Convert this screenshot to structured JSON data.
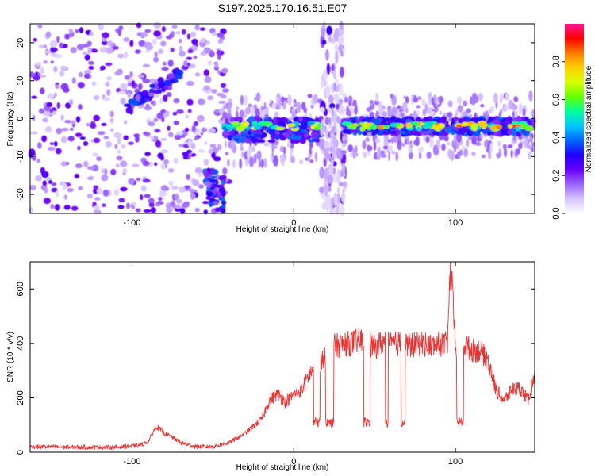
{
  "title": "S197.2025.170.16.51.E07",
  "chart_data": [
    {
      "type": "heatmap",
      "xlabel": "Height of straight line (km)",
      "ylabel": "Frequency (Hz)",
      "xlim": [
        -163,
        149
      ],
      "ylim": [
        -25,
        25
      ],
      "xticks": [
        -100,
        0,
        100
      ],
      "yticks": [
        20,
        10,
        0,
        -10,
        -20
      ],
      "colorbar": {
        "label": "Normalized spectral amplitude",
        "range": [
          0,
          1
        ],
        "ticks": [
          "0.0",
          "0.2",
          "0.4",
          "0.6",
          "0.8"
        ],
        "colormap": [
          "#ffffff",
          "#d6c4ff",
          "#9a63ff",
          "#6a00ff",
          "#1f00ff",
          "#0066ff",
          "#00c8ff",
          "#00ff99",
          "#66ff00",
          "#d8ff00",
          "#ffd000",
          "#ff7a00",
          "#ff0000",
          "#ff1493"
        ]
      },
      "features": [
        {
          "name": "noise-cloud",
          "x_range": [
            -163,
            -40
          ],
          "y_range": [
            -25,
            25
          ],
          "level": 0.15
        },
        {
          "name": "rising-streak",
          "x_range": [
            -103,
            -70
          ],
          "y_range": [
            3,
            12
          ],
          "level": 0.28
        },
        {
          "name": "low-branch",
          "x_range": [
            -55,
            -43
          ],
          "y_range": [
            -25,
            -15
          ],
          "level": 0.3
        },
        {
          "name": "main-band",
          "x_range": [
            -43,
            17
          ],
          "y_range": [
            -6,
            0
          ],
          "level": 0.7
        },
        {
          "name": "vertical-stripe",
          "x_range": [
            17,
            32
          ],
          "y_range": [
            -25,
            25
          ],
          "level": 0.2
        },
        {
          "name": "main-band",
          "x_range": [
            31,
            149
          ],
          "y_range": [
            -4,
            0
          ],
          "level": 0.85
        }
      ]
    },
    {
      "type": "line",
      "xlabel": "Height of straight line (km)",
      "ylabel": "SNR (10 * v/v)",
      "xlim": [
        -163,
        149
      ],
      "ylim": [
        0,
        700
      ],
      "xticks": [
        -100,
        0,
        100
      ],
      "yticks": [
        600,
        400,
        200,
        0
      ],
      "color": "#ee3333",
      "x": [
        -163,
        -150,
        -130,
        -110,
        -95,
        -90,
        -85,
        -80,
        -75,
        -70,
        -60,
        -50,
        -40,
        -30,
        -20,
        -15,
        -10,
        -5,
        0,
        5,
        10,
        15,
        20,
        25,
        30,
        35,
        40,
        45,
        50,
        55,
        60,
        65,
        70,
        75,
        80,
        85,
        90,
        95,
        97,
        100,
        105,
        110,
        115,
        120,
        125,
        130,
        135,
        140,
        145,
        149
      ],
      "values": [
        20,
        20,
        18,
        18,
        25,
        40,
        95,
        70,
        55,
        35,
        20,
        20,
        35,
        70,
        120,
        190,
        215,
        185,
        210,
        230,
        290,
        320,
        360,
        390,
        395,
        400,
        410,
        405,
        385,
        405,
        395,
        400,
        390,
        395,
        400,
        390,
        395,
        398,
        690,
        390,
        400,
        375,
        375,
        340,
        230,
        190,
        230,
        235,
        190,
        300
      ]
    }
  ]
}
